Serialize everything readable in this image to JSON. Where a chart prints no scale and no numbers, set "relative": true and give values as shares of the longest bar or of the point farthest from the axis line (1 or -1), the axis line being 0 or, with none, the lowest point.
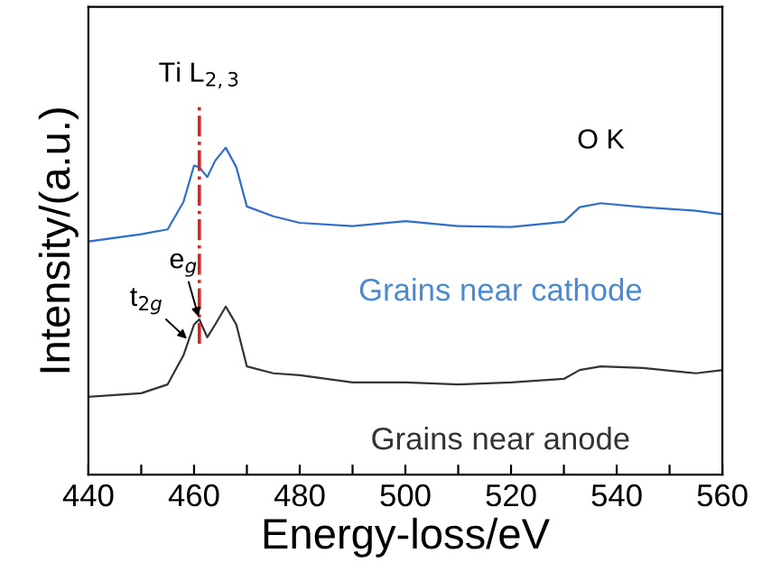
{
  "chart_data": {
    "type": "line",
    "relative": true,
    "xlabel": "Energy-loss/eV",
    "ylabel": "Intensity/(a.u.)",
    "xlim": [
      440,
      560
    ],
    "xticks": [
      440,
      {
        "value": 450,
        "label": null
      },
      460,
      {
        "value": 470,
        "label": null
      },
      480,
      {
        "value": 490,
        "label": null
      },
      500,
      {
        "value": 510,
        "label": null
      },
      520,
      {
        "value": 530,
        "label": null
      },
      540,
      {
        "value": 550,
        "label": null
      },
      560
    ],
    "x": [
      440,
      450,
      455,
      458,
      460,
      461,
      462.5,
      464,
      466,
      468,
      470,
      475,
      480,
      490,
      500,
      510,
      520,
      530,
      533,
      537,
      545,
      555,
      560
    ],
    "series": [
      {
        "name": "Grains near cathode",
        "color": "#2f6fcc",
        "values": [
          0.713,
          0.735,
          0.75,
          0.834,
          0.945,
          0.94,
          0.91,
          0.96,
          1.0,
          0.94,
          0.82,
          0.79,
          0.77,
          0.76,
          0.775,
          0.76,
          0.757,
          0.773,
          0.818,
          0.83,
          0.818,
          0.807,
          0.796
        ]
      },
      {
        "name": "Grains near anode",
        "color": "#333333",
        "values": [
          0.238,
          0.249,
          0.276,
          0.365,
          0.459,
          0.475,
          0.42,
          0.459,
          0.514,
          0.459,
          0.331,
          0.31,
          0.304,
          0.282,
          0.282,
          0.276,
          0.282,
          0.293,
          0.32,
          0.331,
          0.326,
          0.31,
          0.32
        ]
      }
    ],
    "ref_lines": [
      {
        "axis": "x",
        "value": 461,
        "color": "#e02020",
        "line_style": "dashdot"
      }
    ],
    "annotations": [
      {
        "text": "Ti L$_{2,3}$",
        "x": 461,
        "y": 1.11
      },
      {
        "text": "O K",
        "x": 537,
        "y": 0.83
      },
      {
        "text": "e$_{g}$",
        "x": 461,
        "y": 0.475
      },
      {
        "text": "t$_{2g}$",
        "x": 459,
        "y": 0.41
      }
    ],
    "grid": false,
    "legend": false,
    "marker": "none",
    "line_style": "solid"
  }
}
